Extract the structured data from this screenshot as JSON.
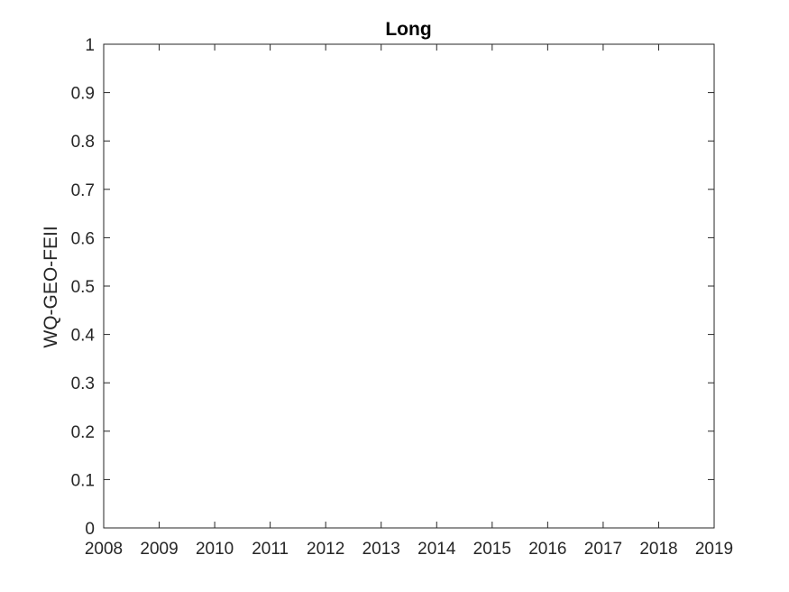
{
  "chart_data": {
    "type": "line",
    "title": "Long",
    "xlabel": "",
    "ylabel": "WQ-GEO-FEII",
    "xlim": [
      2008,
      2019
    ],
    "ylim": [
      0,
      1
    ],
    "x_ticks": [
      "2008",
      "2009",
      "2010",
      "2011",
      "2012",
      "2013",
      "2014",
      "2015",
      "2016",
      "2017",
      "2018",
      "2019"
    ],
    "y_ticks": [
      "0",
      "0.1",
      "0.2",
      "0.3",
      "0.4",
      "0.5",
      "0.6",
      "0.7",
      "0.8",
      "0.9",
      "1"
    ],
    "series": [],
    "grid": false,
    "legend": "none",
    "colors": {
      "axis": "#262626",
      "background": "#ffffff"
    }
  }
}
